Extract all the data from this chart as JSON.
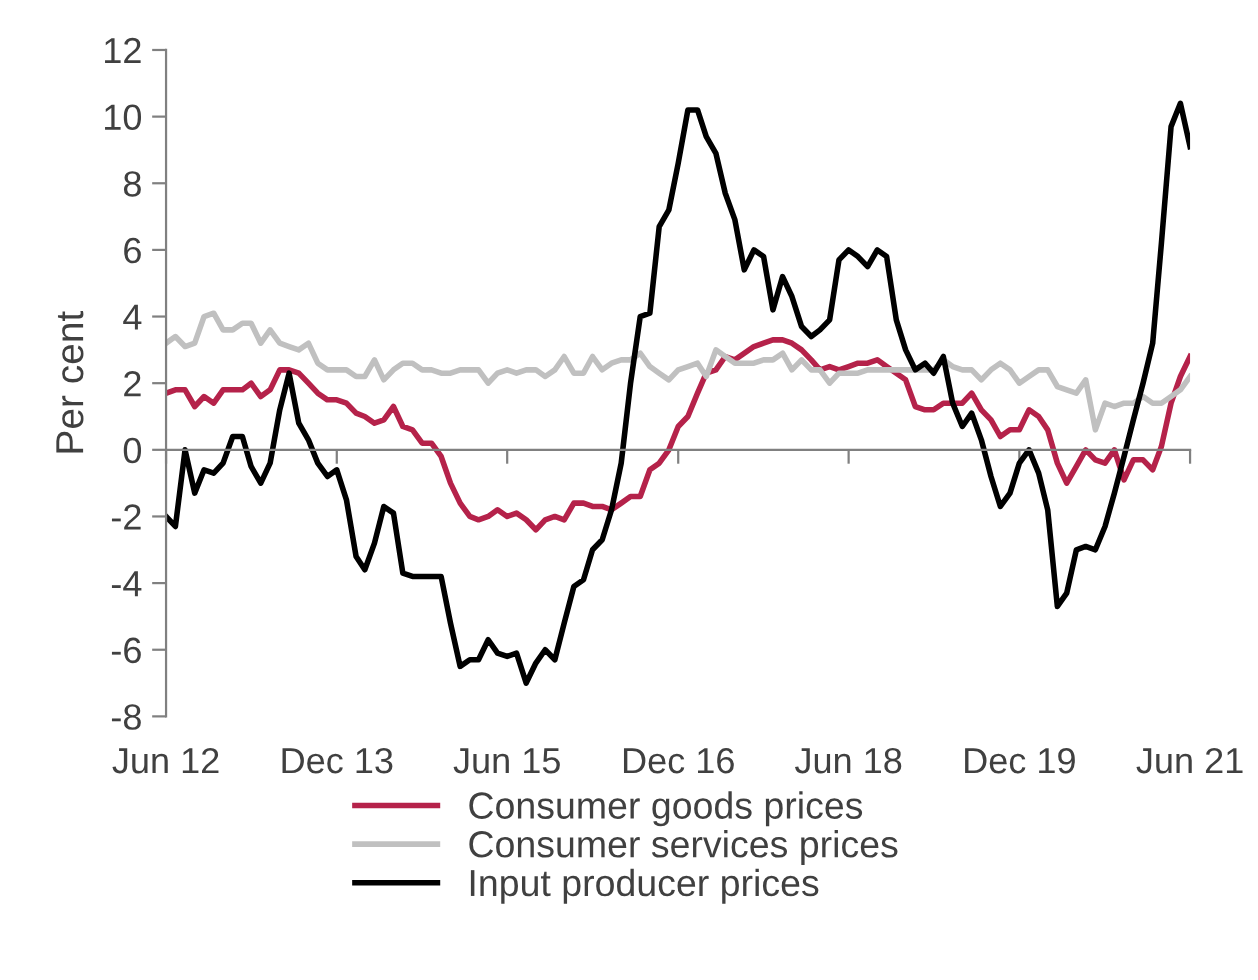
{
  "chart_data": {
    "type": "line",
    "ylabel": "Per cent",
    "x": [
      "2012-06",
      "2012-07",
      "2012-08",
      "2012-09",
      "2012-10",
      "2012-11",
      "2012-12",
      "2013-01",
      "2013-02",
      "2013-03",
      "2013-04",
      "2013-05",
      "2013-06",
      "2013-07",
      "2013-08",
      "2013-09",
      "2013-10",
      "2013-11",
      "2013-12",
      "2014-01",
      "2014-02",
      "2014-03",
      "2014-04",
      "2014-05",
      "2014-06",
      "2014-07",
      "2014-08",
      "2014-09",
      "2014-10",
      "2014-11",
      "2014-12",
      "2015-01",
      "2015-02",
      "2015-03",
      "2015-04",
      "2015-05",
      "2015-06",
      "2015-07",
      "2015-08",
      "2015-09",
      "2015-10",
      "2015-11",
      "2015-12",
      "2016-01",
      "2016-02",
      "2016-03",
      "2016-04",
      "2016-05",
      "2016-06",
      "2016-07",
      "2016-08",
      "2016-09",
      "2016-10",
      "2016-11",
      "2016-12",
      "2017-01",
      "2017-02",
      "2017-03",
      "2017-04",
      "2017-05",
      "2017-06",
      "2017-07",
      "2017-08",
      "2017-09",
      "2017-10",
      "2017-11",
      "2017-12",
      "2018-01",
      "2018-02",
      "2018-03",
      "2018-04",
      "2018-05",
      "2018-06",
      "2018-07",
      "2018-08",
      "2018-09",
      "2018-10",
      "2018-11",
      "2018-12",
      "2019-01",
      "2019-02",
      "2019-03",
      "2019-04",
      "2019-05",
      "2019-06",
      "2019-07",
      "2019-08",
      "2019-09",
      "2019-10",
      "2019-11",
      "2019-12",
      "2020-01",
      "2020-02",
      "2020-03",
      "2020-04",
      "2020-05",
      "2020-06",
      "2020-07",
      "2020-08",
      "2020-09",
      "2020-10",
      "2020-11",
      "2020-12",
      "2021-01",
      "2021-02",
      "2021-03",
      "2021-04",
      "2021-05",
      "2021-06"
    ],
    "series": [
      {
        "name": "Consumer goods prices",
        "color": "#b5224a",
        "values": [
          1.7,
          1.8,
          1.8,
          1.3,
          1.6,
          1.4,
          1.8,
          1.8,
          1.8,
          2.0,
          1.6,
          1.8,
          2.4,
          2.4,
          2.3,
          2.0,
          1.7,
          1.5,
          1.5,
          1.4,
          1.1,
          1.0,
          0.8,
          0.9,
          1.3,
          0.7,
          0.6,
          0.2,
          0.2,
          -0.2,
          -1.0,
          -1.6,
          -2.0,
          -2.1,
          -2.0,
          -1.8,
          -2.0,
          -1.9,
          -2.1,
          -2.4,
          -2.1,
          -2.0,
          -2.1,
          -1.6,
          -1.6,
          -1.7,
          -1.7,
          -1.8,
          -1.6,
          -1.4,
          -1.4,
          -0.6,
          -0.4,
          0,
          0.7,
          1.0,
          1.7,
          2.3,
          2.4,
          2.8,
          2.7,
          2.9,
          3.1,
          3.2,
          3.3,
          3.3,
          3.2,
          3.0,
          2.7,
          2.4,
          2.5,
          2.4,
          2.5,
          2.6,
          2.6,
          2.7,
          2.5,
          2.3,
          2.1,
          1.3,
          1.2,
          1.2,
          1.4,
          1.4,
          1.4,
          1.7,
          1.2,
          0.9,
          0.4,
          0.6,
          0.6,
          1.2,
          1.0,
          0.6,
          -0.4,
          -1.0,
          -0.5,
          0,
          -0.3,
          -0.4,
          0,
          -0.9,
          -0.3,
          -0.3,
          -0.6,
          0.1,
          1.4,
          2.2,
          2.8
        ]
      },
      {
        "name": "Consumer services prices",
        "color": "#c0c0c0",
        "values": [
          3.2,
          3.4,
          3.1,
          3.2,
          4.0,
          4.1,
          3.6,
          3.6,
          3.8,
          3.8,
          3.2,
          3.6,
          3.2,
          3.1,
          3.0,
          3.2,
          2.6,
          2.4,
          2.4,
          2.4,
          2.2,
          2.2,
          2.7,
          2.1,
          2.4,
          2.6,
          2.6,
          2.4,
          2.4,
          2.3,
          2.3,
          2.4,
          2.4,
          2.4,
          2.0,
          2.3,
          2.4,
          2.3,
          2.4,
          2.4,
          2.2,
          2.4,
          2.8,
          2.3,
          2.3,
          2.8,
          2.4,
          2.6,
          2.7,
          2.7,
          2.9,
          2.5,
          2.3,
          2.1,
          2.4,
          2.5,
          2.6,
          2.2,
          3.0,
          2.8,
          2.6,
          2.6,
          2.6,
          2.7,
          2.7,
          2.9,
          2.4,
          2.7,
          2.4,
          2.4,
          2.0,
          2.3,
          2.3,
          2.3,
          2.4,
          2.4,
          2.4,
          2.4,
          2.4,
          2.4,
          2.4,
          2.4,
          2.7,
          2.5,
          2.4,
          2.4,
          2.1,
          2.4,
          2.6,
          2.4,
          2.0,
          2.2,
          2.4,
          2.4,
          1.9,
          1.8,
          1.7,
          2.1,
          0.6,
          1.4,
          1.3,
          1.4,
          1.4,
          1.6,
          1.4,
          1.4,
          1.6,
          1.8,
          2.2
        ]
      },
      {
        "name": "Input producer prices",
        "color": "#000000",
        "values": [
          -2.0,
          -2.3,
          0,
          -1.3,
          -0.6,
          -0.7,
          -0.4,
          0.4,
          0.4,
          -0.5,
          -1.0,
          -0.4,
          1.2,
          2.3,
          0.8,
          0.3,
          -0.4,
          -0.8,
          -0.6,
          -1.5,
          -3.2,
          -3.6,
          -2.8,
          -1.7,
          -1.9,
          -3.7,
          -3.8,
          -3.8,
          -3.8,
          -3.8,
          -5.2,
          -6.5,
          -6.3,
          -6.3,
          -5.7,
          -6.1,
          -6.2,
          -6.1,
          -7.0,
          -6.4,
          -6.0,
          -6.3,
          -5.2,
          -4.1,
          -3.9,
          -3.0,
          -2.7,
          -1.8,
          -0.4,
          2.0,
          4.0,
          4.1,
          6.7,
          7.2,
          8.6,
          10.2,
          10.2,
          9.4,
          8.9,
          7.7,
          6.9,
          5.4,
          6.0,
          5.8,
          4.2,
          5.2,
          4.6,
          3.7,
          3.4,
          3.6,
          3.9,
          5.7,
          6.0,
          5.8,
          5.5,
          6.0,
          5.8,
          3.9,
          3.0,
          2.4,
          2.6,
          2.3,
          2.8,
          1.4,
          0.7,
          1.1,
          0.3,
          -0.8,
          -1.7,
          -1.3,
          -0.4,
          0,
          -0.7,
          -1.8,
          -4.7,
          -4.3,
          -3.0,
          -2.9,
          -3.0,
          -2.3,
          -1.3,
          -0.2,
          0.9,
          2.0,
          3.2,
          6.2,
          9.7,
          10.4,
          9.1
        ]
      }
    ],
    "xlim": [
      "2012-06",
      "2021-06"
    ],
    "xticks": [
      {
        "value": "2012-06",
        "label": "Jun 12"
      },
      {
        "value": "2013-12",
        "label": "Dec 13"
      },
      {
        "value": "2015-06",
        "label": "Jun 15"
      },
      {
        "value": "2016-12",
        "label": "Dec 16"
      },
      {
        "value": "2018-06",
        "label": "Jun 18"
      },
      {
        "value": "2019-12",
        "label": "Dec 19"
      },
      {
        "value": "2021-06",
        "label": "Jun 21"
      }
    ],
    "ylim": [
      -8,
      12
    ],
    "yticks": [
      -8,
      -6,
      -4,
      -2,
      0,
      2,
      4,
      6,
      8,
      10,
      12
    ],
    "legend": "bottom",
    "marker": "none",
    "line_style": "solid"
  }
}
